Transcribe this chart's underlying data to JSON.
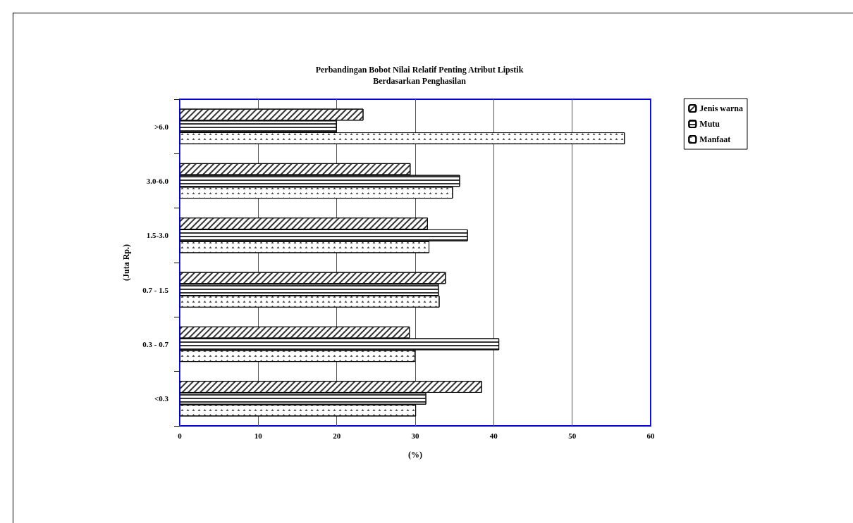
{
  "chart_data": {
    "type": "bar",
    "orientation": "horizontal",
    "title": "Perbandingan Bobot Nilai Relatif Penting Atribut Lipstik",
    "subtitle": "Berdasarkan Penghasilan",
    "xlabel": "(%)",
    "ylabel": "(Juta Rp.)",
    "categories": [
      ">6.0",
      "3.0-6.0",
      "1.5-3.0",
      "0.7 - 1.5",
      "0.3 - 0.7",
      "<0.3"
    ],
    "series": [
      {
        "name": "Jenis warna",
        "color": "#ffffff",
        "values": [
          23.4,
          29.4,
          31.6,
          33.9,
          29.3,
          38.5
        ]
      },
      {
        "name": "Mutu",
        "color": "#ffffff",
        "values": [
          20.0,
          35.7,
          36.7,
          33.0,
          40.7,
          31.4
        ]
      },
      {
        "name": "Manfaat",
        "color": "#ffffff",
        "values": [
          56.7,
          34.8,
          31.8,
          33.1,
          30.0,
          30.1
        ]
      }
    ],
    "xlim": [
      0,
      60
    ],
    "xticks": [
      0,
      10,
      20,
      30,
      40,
      50,
      60
    ],
    "grid": "x",
    "legend": "right"
  }
}
